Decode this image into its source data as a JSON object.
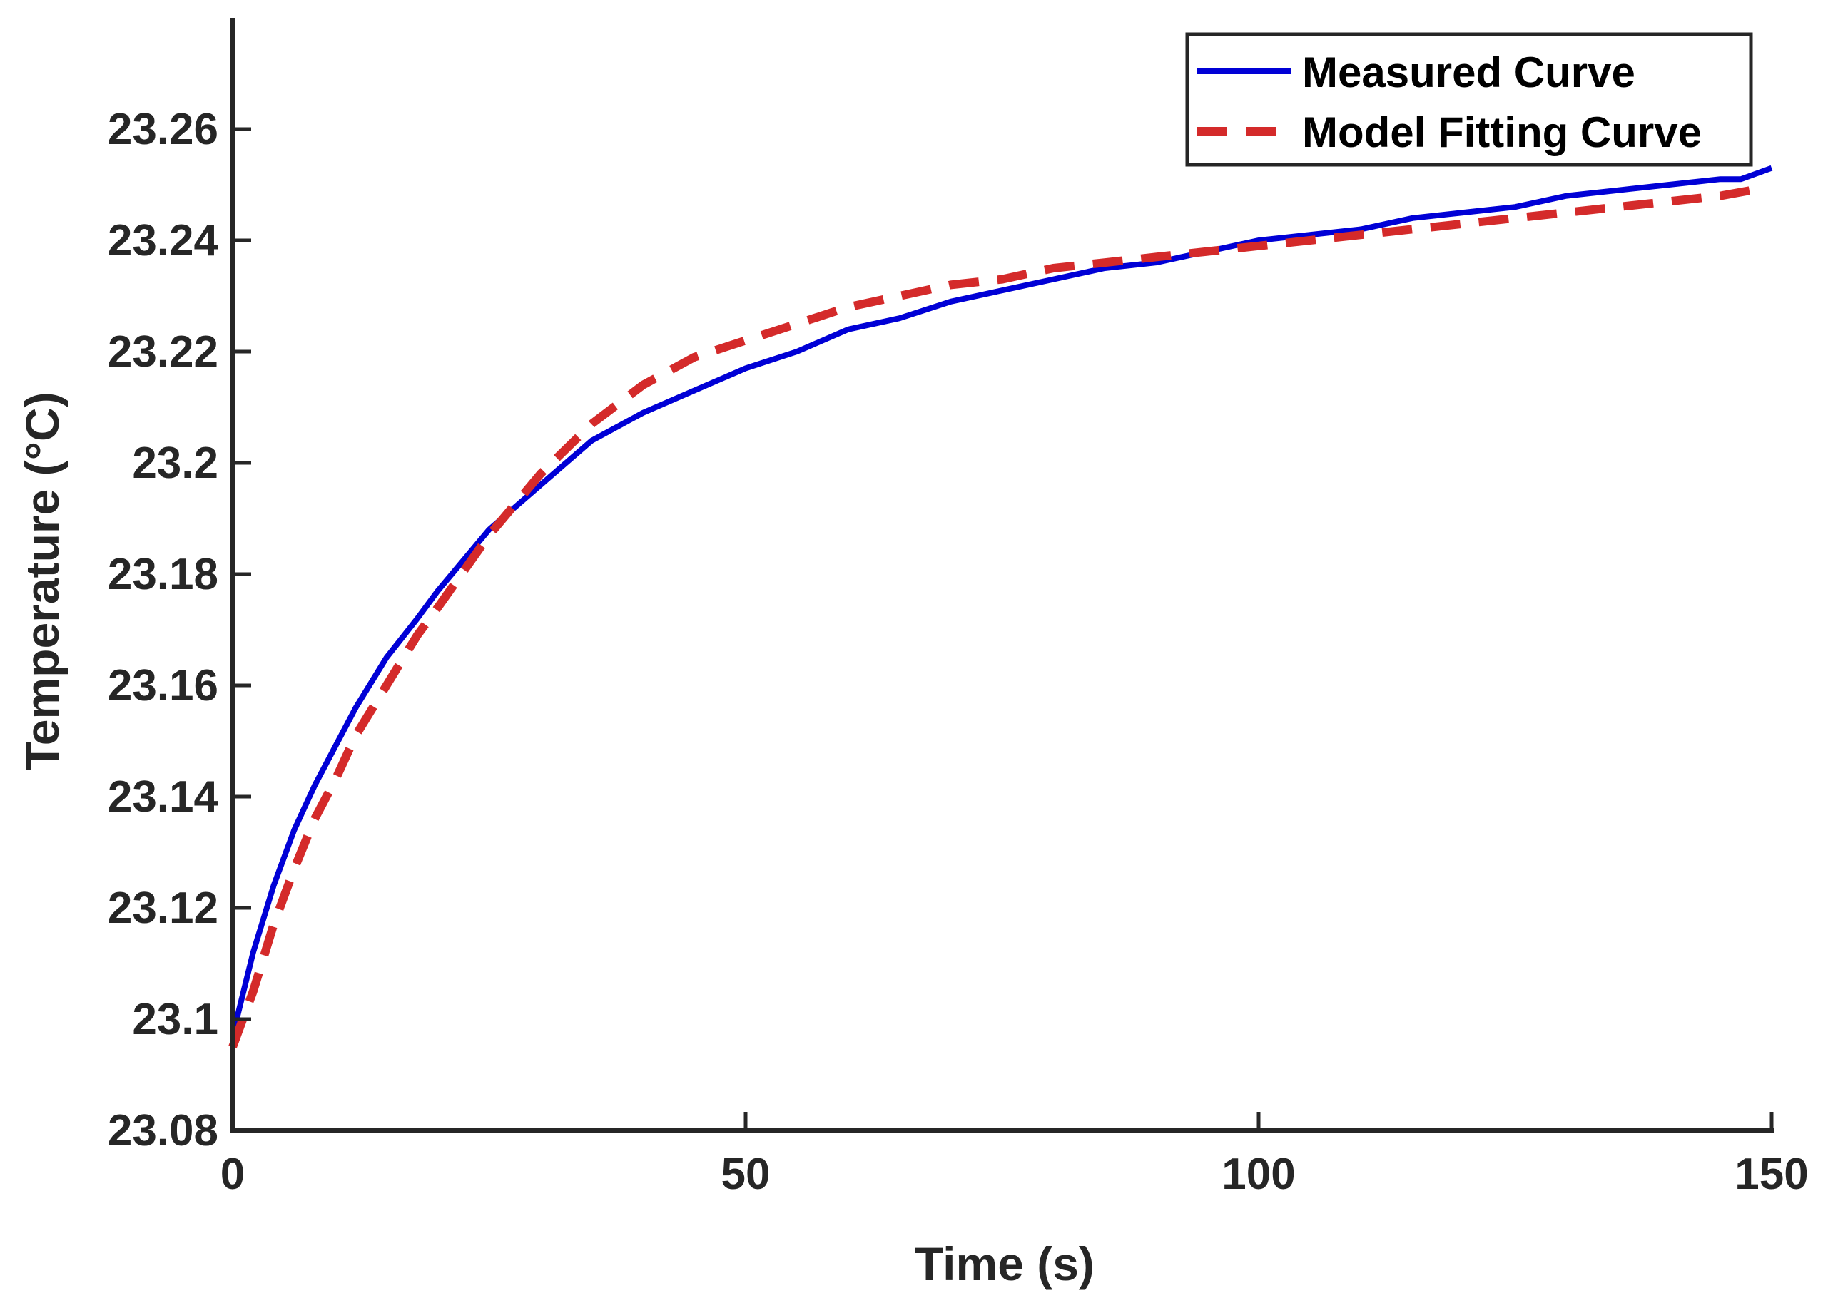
{
  "chart_data": {
    "type": "line",
    "title": "",
    "xlabel": "Time (s)",
    "ylabel": "Temperature (°C)",
    "xlim": [
      0,
      150
    ],
    "ylim": [
      23.08,
      23.28
    ],
    "xticks": [
      0,
      50,
      100,
      150
    ],
    "xtick_labels": [
      "0",
      "50",
      "100",
      "150"
    ],
    "yticks": [
      23.08,
      23.1,
      23.12,
      23.14,
      23.16,
      23.18,
      23.2,
      23.22,
      23.24,
      23.26
    ],
    "ytick_labels": [
      "23.08",
      "23.1",
      "23.12",
      "23.14",
      "23.16",
      "23.18",
      "23.2",
      "23.22",
      "23.24",
      "23.26"
    ],
    "grid": false,
    "legend_position": "top-right",
    "series": [
      {
        "name": "Measured Curve",
        "color": "#0000d6",
        "style": "solid",
        "x": [
          0,
          2,
          4,
          6,
          8,
          10,
          12,
          15,
          18,
          20,
          25,
          30,
          35,
          40,
          45,
          50,
          55,
          60,
          65,
          70,
          75,
          80,
          85,
          90,
          95,
          100,
          105,
          110,
          115,
          120,
          125,
          130,
          135,
          140,
          145,
          147,
          150
        ],
        "y": [
          23.097,
          23.112,
          23.124,
          23.134,
          23.142,
          23.149,
          23.156,
          23.165,
          23.172,
          23.177,
          23.188,
          23.196,
          23.204,
          23.209,
          23.213,
          23.217,
          23.22,
          23.224,
          23.226,
          23.229,
          23.231,
          23.233,
          23.235,
          23.236,
          23.238,
          23.24,
          23.241,
          23.242,
          23.244,
          23.245,
          23.246,
          23.248,
          23.249,
          23.25,
          23.251,
          23.251,
          23.253
        ]
      },
      {
        "name": "Model Fitting Curve",
        "color": "#d42a2a",
        "style": "dashed",
        "x": [
          0,
          2,
          4,
          6,
          8,
          10,
          12,
          15,
          18,
          20,
          25,
          30,
          35,
          40,
          45,
          50,
          55,
          60,
          65,
          70,
          75,
          80,
          85,
          90,
          95,
          100,
          105,
          110,
          115,
          120,
          125,
          130,
          135,
          140,
          145,
          148
        ],
        "y": [
          23.095,
          23.105,
          23.117,
          23.127,
          23.136,
          23.143,
          23.151,
          23.16,
          23.169,
          23.174,
          23.187,
          23.198,
          23.207,
          23.214,
          23.219,
          23.222,
          23.225,
          23.228,
          23.23,
          23.232,
          23.233,
          23.235,
          23.236,
          23.237,
          23.238,
          23.239,
          23.24,
          23.241,
          23.242,
          23.243,
          23.244,
          23.245,
          23.246,
          23.247,
          23.248,
          23.249
        ]
      }
    ]
  }
}
